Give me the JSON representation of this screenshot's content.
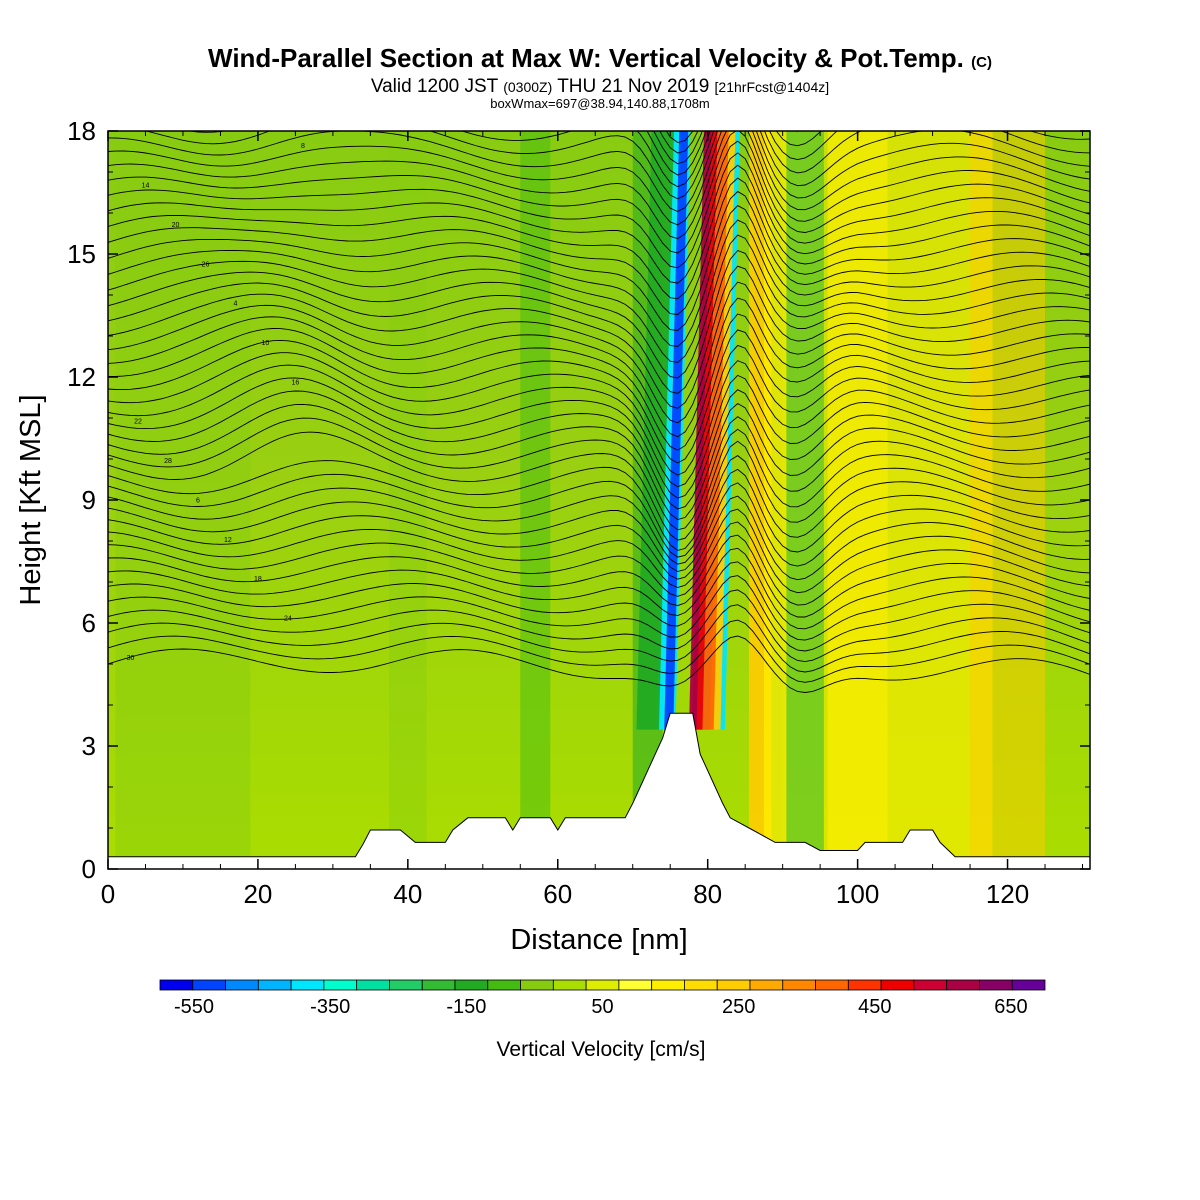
{
  "title": {
    "main": "Wind-Parallel Section at Max W: Vertical Velocity & Pot.Temp.",
    "main_tag": "(C)",
    "valid_prefix": "Valid 1200 JST",
    "valid_utc": "(0300Z)",
    "valid_date": "THU 21 Nov 2019",
    "forecast": "[21hrFcst@1404z]",
    "box_info": "boxWmax=697@38.94,140.88,1708m"
  },
  "chart_data": {
    "type": "heatmap",
    "xlabel": "Distance [nm]",
    "ylabel": "Height [Kft MSL]",
    "xlim": [
      0,
      131
    ],
    "ylim": [
      0,
      18
    ],
    "x_ticks": [
      0,
      20,
      40,
      60,
      80,
      100,
      120
    ],
    "y_ticks": [
      0,
      3,
      6,
      9,
      12,
      15,
      18
    ],
    "x_tick_labels": [
      "0",
      "20",
      "40",
      "60",
      "80",
      "100",
      "120"
    ],
    "y_tick_labels": [
      "0",
      "3",
      "6",
      "9",
      "12",
      "15",
      "18"
    ],
    "colorbar": {
      "title": "Vertical Velocity [cm/s]",
      "labels": [
        "-550",
        "-350",
        "-150",
        "50",
        "250",
        "450",
        "650"
      ],
      "label_values": [
        -550,
        -350,
        -150,
        50,
        250,
        450,
        650
      ],
      "levels": [
        -600,
        -550,
        -500,
        -450,
        -400,
        -350,
        -300,
        -250,
        -200,
        -150,
        -100,
        -50,
        0,
        50,
        100,
        150,
        200,
        250,
        300,
        350,
        400,
        450,
        500,
        550,
        600,
        650,
        700
      ],
      "colors": [
        "#0000ee",
        "#0044ff",
        "#0088ff",
        "#00b4ff",
        "#00e6ff",
        "#00ffcc",
        "#00e0a0",
        "#22cc66",
        "#33bb33",
        "#22aa22",
        "#44bb11",
        "#88cc11",
        "#aadd00",
        "#ddee00",
        "#ffff33",
        "#ffee00",
        "#ffdd00",
        "#ffcc00",
        "#ffaa00",
        "#ff8800",
        "#ff6600",
        "#ff3300",
        "#ee0000",
        "#cc0033",
        "#aa0044",
        "#880066",
        "#660099"
      ]
    },
    "terrain_peak": {
      "x": 77,
      "height_kft": 3.8
    },
    "w_max_location_x": 80,
    "theta_contour_labels": [
      "30",
      "28",
      "26",
      "24",
      "22",
      "20",
      "18",
      "16",
      "14",
      "12",
      "10",
      "8",
      "6",
      "4"
    ]
  }
}
